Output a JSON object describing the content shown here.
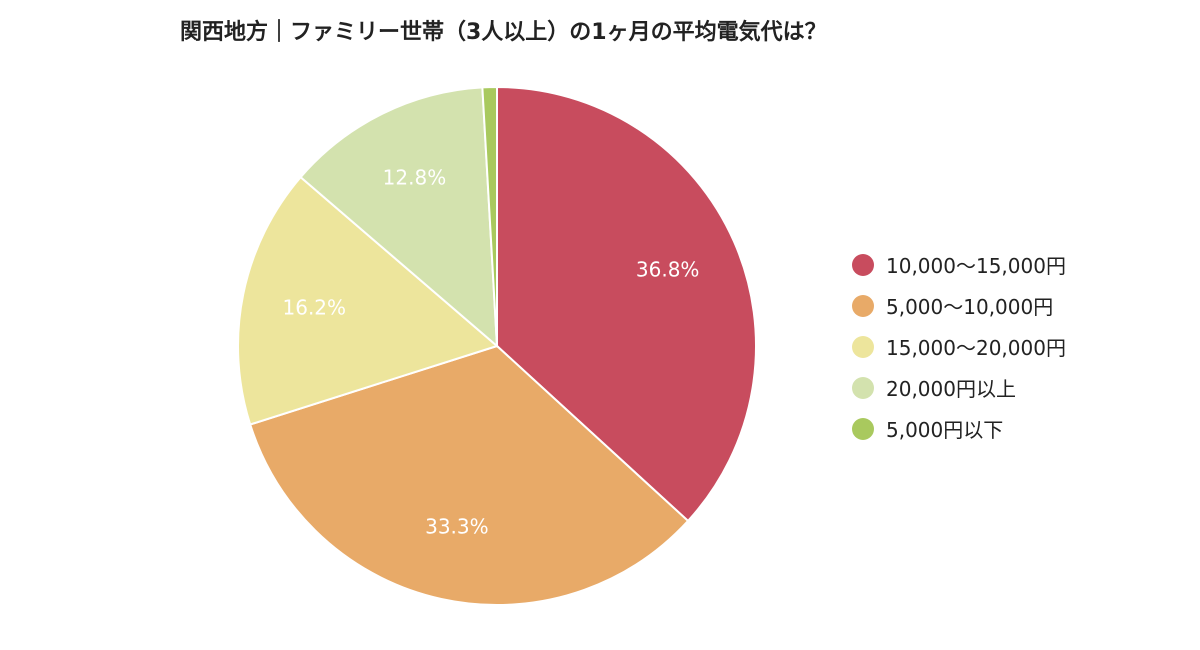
{
  "chart_data": {
    "type": "pie",
    "title": "関西地方｜ファミリー世帯（3人以上）の1ヶ月の平均電気代は？",
    "legend_position": "right",
    "slices": [
      {
        "label": "10,000〜15,000円",
        "value": 36.8,
        "display": "36.8%",
        "color": "#c84c5e"
      },
      {
        "label": "5,000〜10,000円",
        "value": 33.3,
        "display": "33.3%",
        "color": "#e8aa68"
      },
      {
        "label": "15,000〜20,000円",
        "value": 16.2,
        "display": "16.2%",
        "color": "#ede59c"
      },
      {
        "label": "20,000円以上",
        "value": 12.8,
        "display": "12.8%",
        "color": "#d3e2ae"
      },
      {
        "label": "5,000円以下",
        "value": 0.9,
        "display": "",
        "color": "#a9c95e"
      }
    ]
  }
}
